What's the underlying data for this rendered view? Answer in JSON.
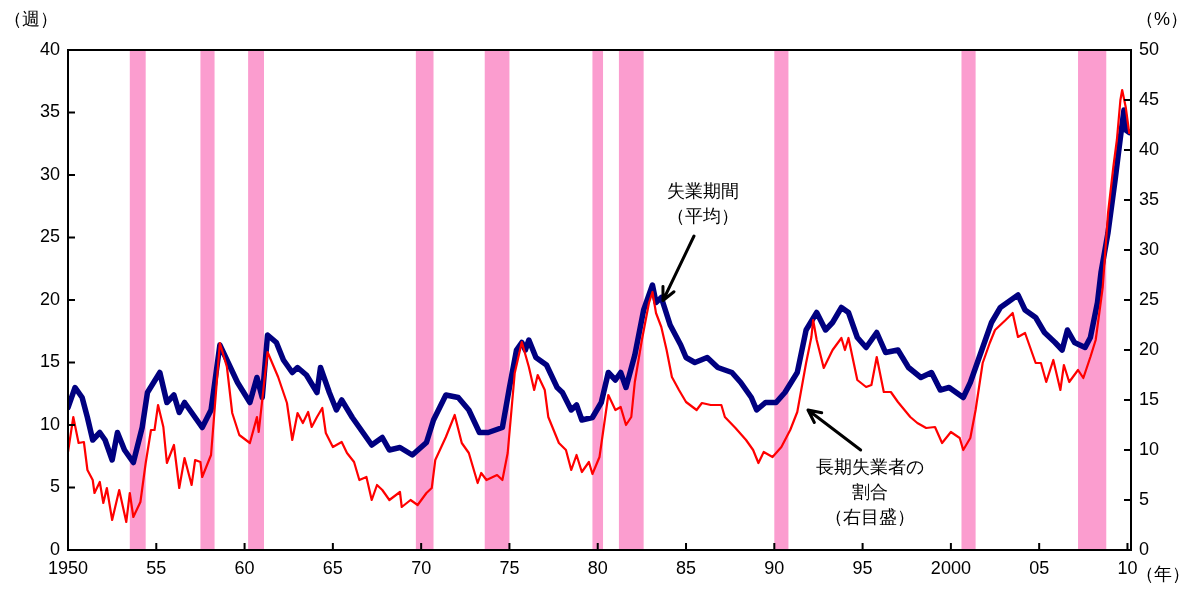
{
  "chart_data": {
    "type": "line",
    "ylabel": "（週）",
    "y2label": "（%）",
    "xlabel": "（年）",
    "xlim": [
      1950,
      2010.2
    ],
    "xticks": [
      {
        "value": 1950,
        "label": "1950"
      },
      {
        "value": 1955,
        "label": "55"
      },
      {
        "value": 1960,
        "label": "60"
      },
      {
        "value": 1965,
        "label": "65"
      },
      {
        "value": 1970,
        "label": "70"
      },
      {
        "value": 1975,
        "label": "75"
      },
      {
        "value": 1980,
        "label": "80"
      },
      {
        "value": 1985,
        "label": "85"
      },
      {
        "value": 1990,
        "label": "90"
      },
      {
        "value": 1995,
        "label": "95"
      },
      {
        "value": 2000,
        "label": "2000"
      },
      {
        "value": 2005,
        "label": "05"
      },
      {
        "value": 2010,
        "label": "10"
      }
    ],
    "ylim": [
      0,
      40
    ],
    "yticks": [
      0,
      5,
      10,
      15,
      20,
      25,
      30,
      35,
      40
    ],
    "y2lim": [
      0,
      50
    ],
    "y2ticks": [
      0,
      5,
      10,
      15,
      20,
      25,
      30,
      35,
      40,
      45,
      50
    ],
    "bands": [
      {
        "axis": "x",
        "from": 1953.5,
        "to": 1954.4,
        "color": "#fb9dcf"
      },
      {
        "axis": "x",
        "from": 1957.5,
        "to": 1958.3,
        "color": "#fb9dcf"
      },
      {
        "axis": "x",
        "from": 1960.2,
        "to": 1961.1,
        "color": "#fb9dcf"
      },
      {
        "axis": "x",
        "from": 1969.7,
        "to": 1970.7,
        "color": "#fb9dcf"
      },
      {
        "axis": "x",
        "from": 1973.6,
        "to": 1975.0,
        "color": "#fb9dcf"
      },
      {
        "axis": "x",
        "from": 1979.7,
        "to": 1980.3,
        "color": "#fb9dcf"
      },
      {
        "axis": "x",
        "from": 1981.2,
        "to": 1982.6,
        "color": "#fb9dcf"
      },
      {
        "axis": "x",
        "from": 1990.0,
        "to": 1990.8,
        "color": "#fb9dcf"
      },
      {
        "axis": "x",
        "from": 2000.6,
        "to": 2001.4,
        "color": "#fb9dcf"
      },
      {
        "axis": "x",
        "from": 2007.2,
        "to": 2008.8,
        "color": "#fb9dcf"
      }
    ],
    "annotations": [
      {
        "text": "失業期間（平均）",
        "x": 1983.7,
        "y": 20
      },
      "長期失業者の割合（右目盛）"
    ],
    "series": [
      {
        "color": "#ff0000",
        "axis": "y2",
        "x": [
          1950.0,
          1950.3,
          1950.6,
          1950.9,
          1951.1,
          1951.4,
          1951.5,
          1951.8,
          1952.0,
          1952.2,
          1952.5,
          1952.9,
          1953.3,
          1953.5,
          1953.7,
          1954.1,
          1954.4,
          1954.7,
          1954.9,
          1955.1,
          1955.4,
          1955.6,
          1956.0,
          1956.3,
          1956.6,
          1957.0,
          1957.2,
          1957.5,
          1957.6,
          1958.1,
          1958.6,
          1959.0,
          1959.3,
          1959.7,
          1960.3,
          1960.7,
          1960.8,
          1961.3,
          1961.9,
          1962.4,
          1962.7,
          1963.0,
          1963.3,
          1963.6,
          1963.8,
          1964.1,
          1964.4,
          1964.6,
          1965.0,
          1965.5,
          1965.8,
          1966.2,
          1966.5,
          1966.9,
          1967.2,
          1967.5,
          1967.8,
          1968.2,
          1968.8,
          1968.9,
          1969.4,
          1969.8,
          1970.3,
          1970.6,
          1970.8,
          1971.4,
          1971.9,
          1972.3,
          1972.7,
          1973.2,
          1973.4,
          1973.7,
          1974.3,
          1974.6,
          1974.9,
          1975.3,
          1975.7,
          1976.1,
          1976.4,
          1976.6,
          1977.0,
          1977.2,
          1977.8,
          1978.2,
          1978.5,
          1978.8,
          1979.1,
          1979.5,
          1979.7,
          1980.1,
          1980.6,
          1981.0,
          1981.3,
          1981.6,
          1981.9,
          1982.1,
          1982.5,
          1982.9,
          1983.1,
          1983.3,
          1983.6,
          1983.9,
          1984.2,
          1984.6,
          1985.0,
          1985.6,
          1985.9,
          1986.4,
          1987.0,
          1987.2,
          1987.8,
          1988.4,
          1988.8,
          1989.1,
          1989.4,
          1989.9,
          1990.4,
          1990.9,
          1991.3,
          1991.8,
          1992.1,
          1992.2,
          1992.4,
          1992.8,
          1993.3,
          1993.8,
          1994.0,
          1994.2,
          1994.7,
          1995.2,
          1995.5,
          1995.8,
          1996.2,
          1996.6,
          1997.0,
          1997.7,
          1998.1,
          1998.6,
          1999.1,
          1999.5,
          2000.0,
          2000.5,
          2000.7,
          2001.1,
          2001.4,
          2001.8,
          2002.2,
          2002.5,
          2003.1,
          2003.5,
          2003.8,
          2004.2,
          2004.8,
          2005.1,
          2005.4,
          2005.8,
          2006.2,
          2006.4,
          2006.7,
          2007.2,
          2007.5,
          2007.9,
          2008.2,
          2008.6,
          2008.9,
          2009.2,
          2009.4,
          2009.6,
          2009.7,
          2009.9,
          2010.1
        ],
        "values": [
          9.8,
          13.3,
          10.7,
          10.8,
          8.0,
          7.0,
          5.7,
          6.8,
          4.7,
          6.2,
          3.0,
          6.0,
          2.8,
          5.7,
          3.3,
          4.8,
          8.7,
          12.0,
          12.0,
          14.5,
          12.3,
          8.7,
          10.5,
          6.2,
          9.2,
          6.5,
          9.0,
          8.8,
          7.3,
          9.5,
          20.7,
          18.3,
          13.7,
          11.5,
          10.7,
          13.3,
          11.8,
          19.8,
          17.3,
          14.7,
          11.0,
          13.7,
          12.7,
          13.8,
          12.3,
          13.3,
          14.2,
          11.7,
          10.3,
          10.8,
          9.7,
          8.8,
          7.0,
          7.3,
          5.0,
          6.5,
          6.0,
          5.0,
          5.8,
          4.3,
          5.0,
          4.5,
          5.7,
          6.2,
          9.0,
          11.3,
          13.5,
          10.7,
          9.7,
          6.7,
          7.7,
          7.0,
          7.5,
          7.0,
          9.7,
          17.7,
          20.8,
          18.3,
          16.0,
          17.5,
          16.0,
          13.3,
          10.7,
          10.0,
          8.0,
          9.5,
          7.8,
          8.8,
          7.6,
          9.3,
          15.5,
          14.0,
          14.3,
          12.5,
          13.3,
          16.8,
          21.0,
          24.7,
          25.8,
          23.7,
          22.3,
          20.0,
          17.3,
          16.0,
          14.8,
          14.0,
          14.7,
          14.5,
          14.5,
          13.3,
          12.2,
          11.0,
          10.0,
          8.7,
          9.8,
          9.3,
          10.3,
          12.0,
          13.8,
          18.7,
          21.3,
          23.0,
          21.0,
          18.2,
          20.0,
          21.2,
          20.0,
          21.2,
          17.0,
          16.3,
          16.5,
          19.3,
          15.8,
          15.8,
          14.8,
          13.3,
          12.7,
          12.2,
          12.3,
          10.7,
          11.8,
          11.2,
          10.0,
          11.2,
          14.0,
          18.7,
          20.7,
          22.0,
          23.0,
          23.7,
          21.3,
          21.7,
          18.7,
          18.7,
          16.8,
          19.0,
          16.0,
          18.5,
          16.8,
          18.0,
          17.2,
          19.3,
          21.0,
          26.3,
          33.7,
          38.3,
          41.0,
          45.0,
          46.0,
          44.3,
          41.7
        ]
      },
      {
        "color": "#000080",
        "axis": "y",
        "x": [
          1950.0,
          1950.4,
          1950.8,
          1951.1,
          1951.4,
          1951.8,
          1952.1,
          1952.5,
          1952.8,
          1953.2,
          1953.7,
          1954.2,
          1954.5,
          1955.2,
          1955.6,
          1956.0,
          1956.3,
          1956.6,
          1957.2,
          1957.6,
          1958.1,
          1958.6,
          1959.0,
          1959.6,
          1960.3,
          1960.7,
          1961.0,
          1961.3,
          1961.8,
          1962.2,
          1962.7,
          1963.0,
          1963.5,
          1964.1,
          1964.3,
          1964.8,
          1965.2,
          1965.5,
          1966.1,
          1966.5,
          1967.2,
          1967.8,
          1968.2,
          1968.8,
          1969.5,
          1970.3,
          1970.7,
          1971.4,
          1972.1,
          1972.7,
          1973.3,
          1973.8,
          1974.6,
          1975.0,
          1975.4,
          1975.7,
          1975.9,
          1976.1,
          1976.5,
          1977.1,
          1977.7,
          1978.0,
          1978.5,
          1978.8,
          1979.1,
          1979.7,
          1980.2,
          1980.6,
          1981.0,
          1981.3,
          1981.6,
          1982.1,
          1982.6,
          1983.1,
          1983.3,
          1983.6,
          1984.1,
          1984.7,
          1985.0,
          1985.5,
          1986.2,
          1986.8,
          1987.6,
          1988.1,
          1988.7,
          1989.0,
          1989.5,
          1990.1,
          1990.6,
          1991.3,
          1991.8,
          1992.4,
          1992.9,
          1993.3,
          1993.8,
          1994.2,
          1994.7,
          1995.2,
          1995.8,
          1996.3,
          1997.0,
          1997.6,
          1998.3,
          1998.9,
          1999.4,
          1999.9,
          2000.7,
          2001.1,
          2001.6,
          2002.3,
          2002.8,
          2003.2,
          2003.8,
          2004.2,
          2004.8,
          2005.3,
          2005.9,
          2006.3,
          2006.6,
          2007.0,
          2007.6,
          2007.9,
          2008.3,
          2008.5,
          2008.9,
          2009.3,
          2009.6,
          2009.8,
          2009.9,
          2010.1
        ],
        "values": [
          11.4,
          13.0,
          12.2,
          10.6,
          8.8,
          9.4,
          8.8,
          7.2,
          9.4,
          8.0,
          7.0,
          9.8,
          12.6,
          14.2,
          11.8,
          12.4,
          11.0,
          11.8,
          10.6,
          9.8,
          11.2,
          16.4,
          15.2,
          13.4,
          11.8,
          13.8,
          12.2,
          17.2,
          16.6,
          15.2,
          14.2,
          14.6,
          14.0,
          12.6,
          14.6,
          12.6,
          11.2,
          12.0,
          10.6,
          9.8,
          8.4,
          9.0,
          8.0,
          8.2,
          7.6,
          8.6,
          10.4,
          12.4,
          12.2,
          11.2,
          9.4,
          9.4,
          9.8,
          13.0,
          16.0,
          16.6,
          16.0,
          16.8,
          15.4,
          14.8,
          13.0,
          12.6,
          11.2,
          11.6,
          10.4,
          10.6,
          11.8,
          14.2,
          13.6,
          14.2,
          13.0,
          15.6,
          19.2,
          21.2,
          19.8,
          20.2,
          18.0,
          16.4,
          15.4,
          15.0,
          15.4,
          14.6,
          14.2,
          13.4,
          12.2,
          11.2,
          11.8,
          11.8,
          12.6,
          14.2,
          17.6,
          19.0,
          17.6,
          18.2,
          19.4,
          19.0,
          17.0,
          16.2,
          17.4,
          15.8,
          16.0,
          14.6,
          13.8,
          14.2,
          12.8,
          13.0,
          12.2,
          13.4,
          15.4,
          18.2,
          19.4,
          19.8,
          20.4,
          19.2,
          18.6,
          17.4,
          16.6,
          16.0,
          17.6,
          16.6,
          16.2,
          17.0,
          19.8,
          22.2,
          25.4,
          29.6,
          33.0,
          35.2,
          33.6,
          33.4
        ]
      }
    ]
  }
}
